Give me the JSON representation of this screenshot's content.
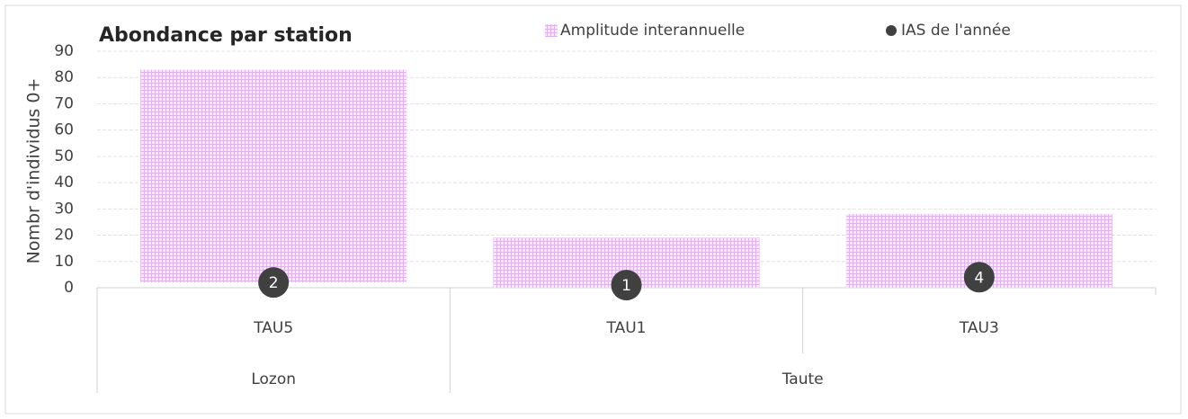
{
  "chart_data": {
    "type": "floating-bar-dot",
    "title": "Abondance par station",
    "y_label": "Nombr d'individus 0+",
    "categories": [
      "TAU5",
      "TAU1",
      "TAU3"
    ],
    "groups": [
      {
        "label": "Lozon",
        "span": 1
      },
      {
        "label": "Taute",
        "span": 2
      }
    ],
    "bars": {
      "name": "Amplitude interannuelle",
      "color": "#e9c6f2",
      "low": [
        2,
        0,
        0
      ],
      "high": [
        83,
        19,
        28
      ]
    },
    "dots": {
      "name": "IAS de l'année",
      "color": "#404040",
      "values": [
        2,
        1,
        4
      ]
    },
    "ylim": [
      0,
      90
    ],
    "yticks": [
      0,
      10,
      20,
      30,
      40,
      50,
      60,
      70,
      80,
      90
    ],
    "grid": true
  }
}
